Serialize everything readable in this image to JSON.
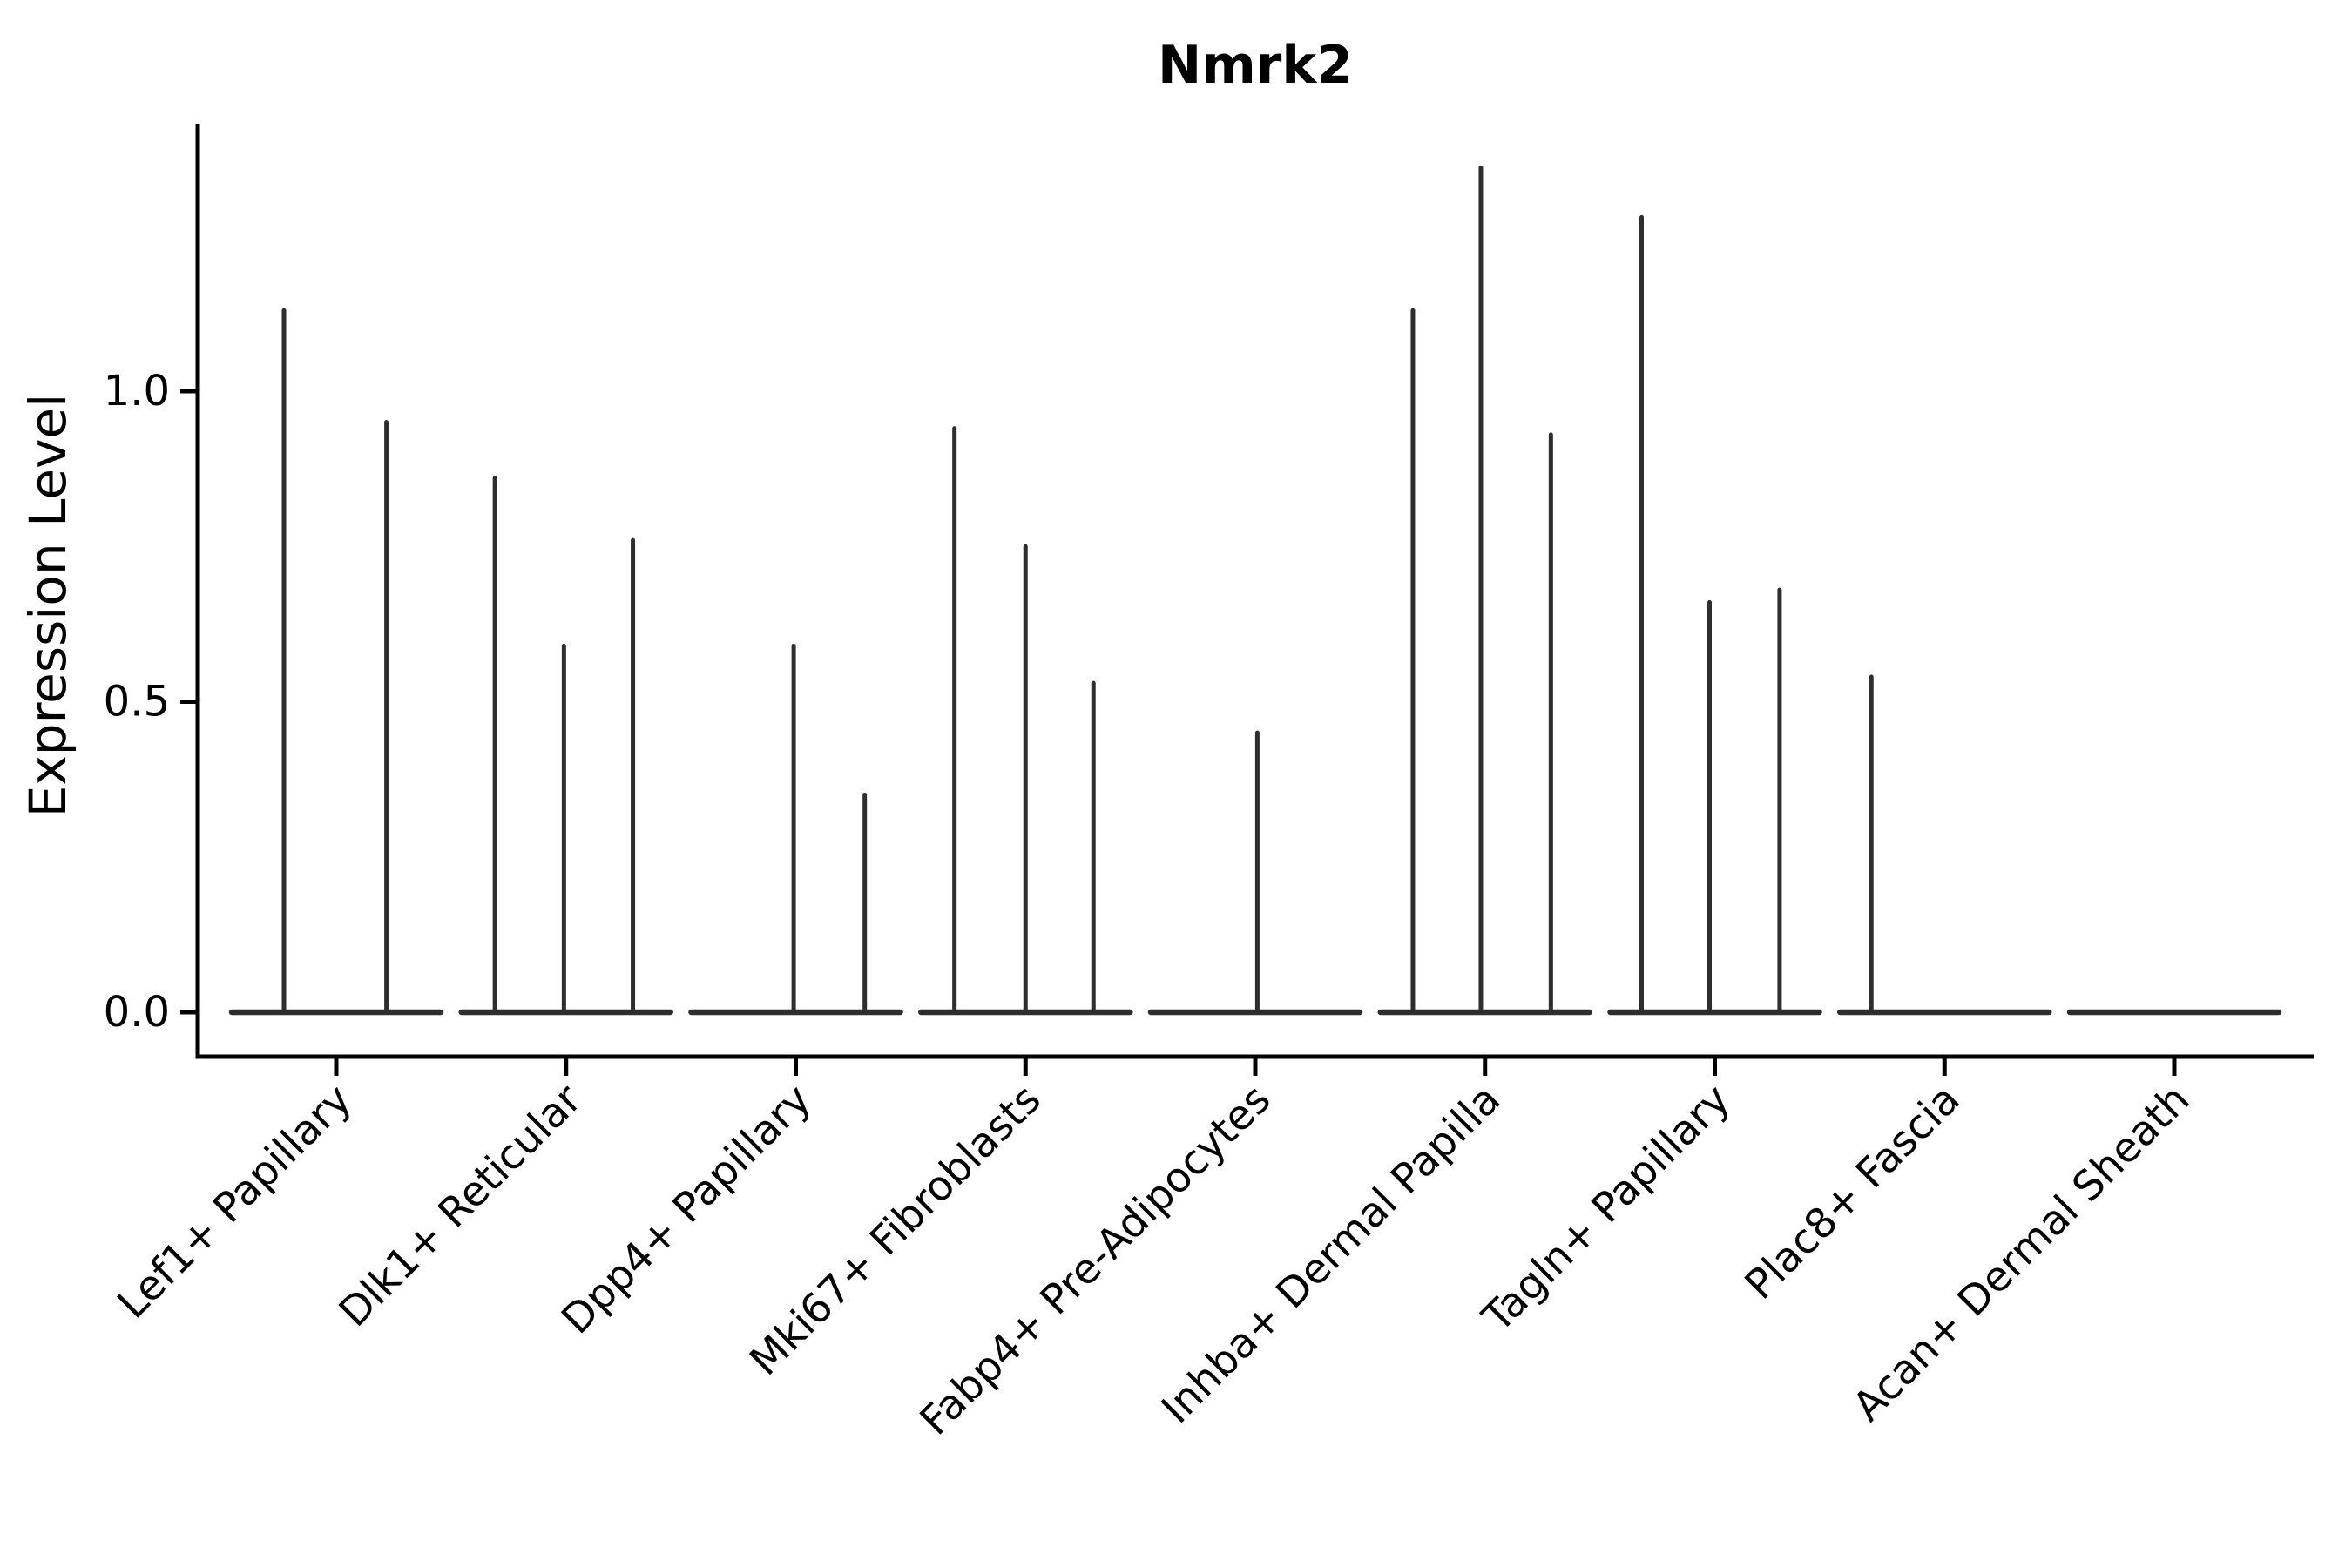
{
  "chart_data": {
    "type": "violin",
    "title": "Nmrk2",
    "xlabel": "",
    "ylabel": "Expression Level",
    "ylim": [
      -0.07,
      1.43
    ],
    "grid": false,
    "legend": "none",
    "yticks": [
      {
        "label": "0.0",
        "value": 0.0
      },
      {
        "label": "0.5",
        "value": 0.5
      },
      {
        "label": "1.0",
        "value": 1.0
      }
    ],
    "categories": [
      "Lef1+ Papillary",
      "Dlk1+ Reticular",
      "Dpp4+ Papillary",
      "Mki67+ Fibroblasts",
      "Fabp4+ Pre-Adipocytes",
      "Inhba+ Dermal Papilla",
      "Tagln+ Papillary",
      "Plac8+ Fascia",
      "Acan+ Dermal Sheath"
    ],
    "violins": [
      {
        "category": "Lef1+ Papillary",
        "base_at": 0.0,
        "spikes": [
          {
            "pos": -0.25,
            "peak": 1.13
          },
          {
            "pos": 0.24,
            "peak": 0.95
          }
        ]
      },
      {
        "category": "Dlk1+ Reticular",
        "base_at": 0.0,
        "spikes": [
          {
            "pos": -0.34,
            "peak": 0.86
          },
          {
            "pos": -0.01,
            "peak": 0.59
          },
          {
            "pos": 0.32,
            "peak": 0.76
          }
        ]
      },
      {
        "category": "Dpp4+ Papillary",
        "base_at": 0.0,
        "spikes": [
          {
            "pos": -0.01,
            "peak": 0.59
          },
          {
            "pos": 0.33,
            "peak": 0.35
          }
        ]
      },
      {
        "category": "Mki67+ Fibroblasts",
        "base_at": 0.0,
        "spikes": [
          {
            "pos": -0.34,
            "peak": 0.94
          },
          {
            "pos": 0.0,
            "peak": 0.75
          },
          {
            "pos": 0.325,
            "peak": 0.53
          }
        ]
      },
      {
        "category": "Fabp4+ Pre-Adipocytes",
        "base_at": 0.0,
        "spikes": [
          {
            "pos": 0.01,
            "peak": 0.45
          }
        ]
      },
      {
        "category": "Inhba+ Dermal Papilla",
        "base_at": 0.0,
        "spikes": [
          {
            "pos": -0.345,
            "peak": 1.13
          },
          {
            "pos": -0.02,
            "peak": 1.36
          },
          {
            "pos": 0.315,
            "peak": 0.93
          }
        ]
      },
      {
        "category": "Tagln+ Papillary",
        "base_at": 0.0,
        "spikes": [
          {
            "pos": -0.35,
            "peak": 1.28
          },
          {
            "pos": -0.025,
            "peak": 0.66
          },
          {
            "pos": 0.31,
            "peak": 0.68
          }
        ]
      },
      {
        "category": "Plac8+ Fascia",
        "base_at": 0.0,
        "spikes": [
          {
            "pos": -0.35,
            "peak": 0.54
          }
        ]
      },
      {
        "category": "Acan+ Dermal Sheath",
        "base_at": 0.0,
        "spikes": []
      }
    ],
    "colors": {
      "violin_stroke": "#2e2e2e",
      "axis": "#000000",
      "text": "#000000",
      "background": "#ffffff"
    }
  }
}
